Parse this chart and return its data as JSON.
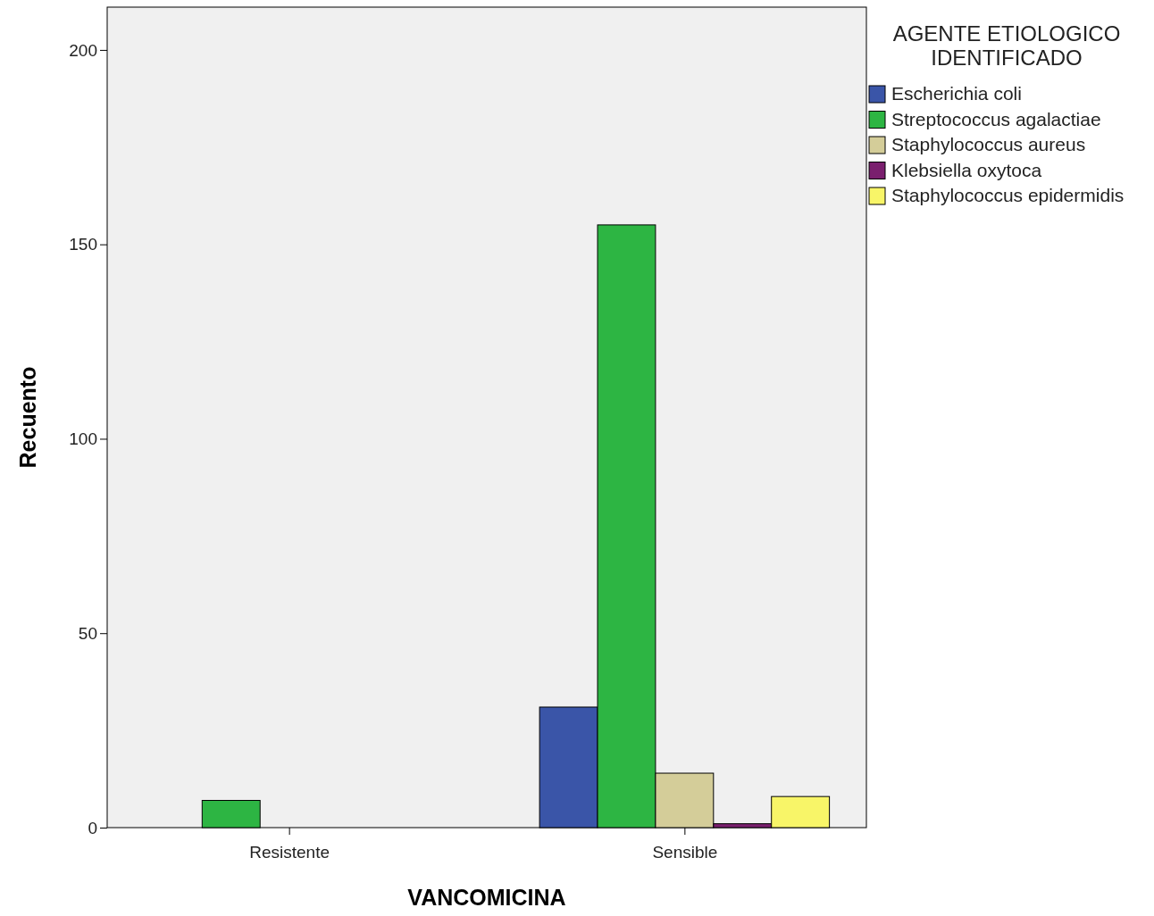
{
  "chart_data": {
    "type": "bar",
    "xlabel": "VANCOMICINA",
    "ylabel": "Recuento",
    "legend_title": "AGENTE ETIOLOGICO IDENTIFICADO",
    "categories": [
      "Resistente",
      "Sensible"
    ],
    "series": [
      {
        "name": "Escherichia coli",
        "color": "#3a55a8",
        "values": [
          null,
          31
        ]
      },
      {
        "name": "Streptococcus agalactiae",
        "color": "#2db543",
        "values": [
          7,
          155
        ]
      },
      {
        "name": "Staphylococcus aureus",
        "color": "#d4cd99",
        "values": [
          null,
          14
        ]
      },
      {
        "name": "Klebsiella oxytoca",
        "color": "#7a1f6e",
        "values": [
          null,
          1
        ]
      },
      {
        "name": "Staphylococcus epidermidis",
        "color": "#f8f568",
        "values": [
          null,
          8
        ]
      }
    ],
    "ylim": [
      0,
      211
    ],
    "yticks": [
      0,
      50,
      100,
      150,
      200
    ],
    "grid": false,
    "legend": "right"
  }
}
